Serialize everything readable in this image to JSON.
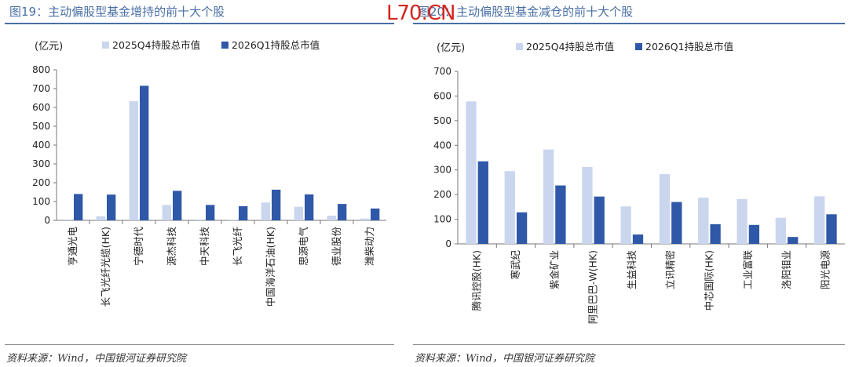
{
  "watermark": "L70.CN",
  "legend": {
    "series1": "2025Q4持股总市值",
    "series2": "2026Q1持股总市值",
    "unit": "(亿元)"
  },
  "colors": {
    "light": "#c9d6ee",
    "dark": "#2f58a8",
    "accent": "#4a6fa5"
  },
  "source": "资料来源：Wind，中国银河证券研究院",
  "chart_data": [
    {
      "type": "bar",
      "title": "图19：主动偏股型基金增持的前十大个股",
      "categories": [
        "亨通光电",
        "长飞光纤光缆(HK)",
        "宁德时代",
        "源杰科技",
        "中天科技",
        "长飞光纤",
        "中国海洋石油(HK)",
        "思源电气",
        "德业股份",
        "潍柴动力"
      ],
      "series": [
        {
          "name": "2025Q4持股总市值",
          "values": [
            5,
            22,
            633,
            82,
            5,
            3,
            95,
            72,
            25,
            10
          ]
        },
        {
          "name": "2026Q1持股总市值",
          "values": [
            140,
            137,
            715,
            157,
            82,
            75,
            163,
            138,
            87,
            63
          ]
        }
      ],
      "ylim": [
        0,
        800
      ],
      "yticks": [
        0,
        100,
        200,
        300,
        400,
        500,
        600,
        700,
        800
      ],
      "ylabel": "(亿元)"
    },
    {
      "type": "bar",
      "title": "图20：主动偏股型基金减仓的前十大个股",
      "categories": [
        "腾讯控股(HK)",
        "寒武纪",
        "紫金矿业",
        "阿里巴巴-W(HK)",
        "生益科技",
        "立讯精密",
        "中芯国际(HK)",
        "工业富联",
        "洛阳钼业",
        "阳光电源"
      ],
      "series": [
        {
          "name": "2025Q4持股总市值",
          "values": [
            578,
            295,
            383,
            312,
            152,
            283,
            188,
            182,
            106,
            193
          ]
        },
        {
          "name": "2026Q1持股总市值",
          "values": [
            335,
            128,
            237,
            192,
            38,
            170,
            80,
            77,
            28,
            120
          ]
        }
      ],
      "ylim": [
        0,
        700
      ],
      "yticks": [
        0,
        100,
        200,
        300,
        400,
        500,
        600,
        700
      ],
      "ylabel": "(亿元)"
    }
  ]
}
